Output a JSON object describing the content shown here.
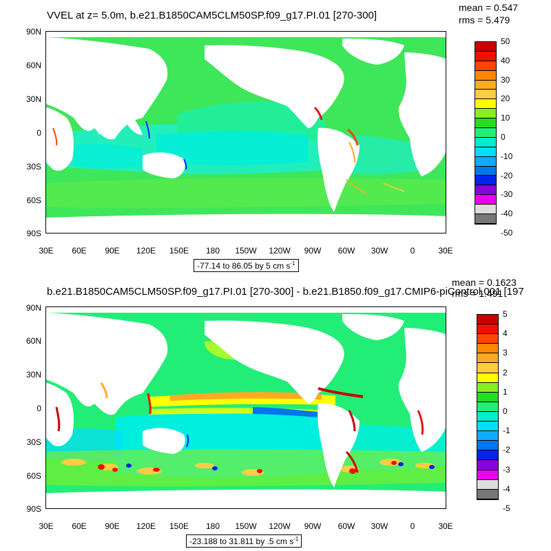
{
  "panels": [
    {
      "title": "VVEL at z=   5.0m, b.e21.B1850CAM5CLM50SP.f09_g17.PI.01 [270-300]",
      "mean": "mean = 0.547",
      "rms": "rms = 5.479",
      "range": "-77.14 to 86.05 by 5 cm s",
      "range_sup": "-1",
      "lat_labels": [
        "90N",
        "60N",
        "30N",
        "0",
        "30S",
        "60S",
        "90S"
      ],
      "lon_labels": [
        "30E",
        "60E",
        "90E",
        "120E",
        "150E",
        "180",
        "150W",
        "120W",
        "90W",
        "60W",
        "30W",
        "0",
        "30E"
      ],
      "cbar_labels": [
        "50",
        "40",
        "30",
        "20",
        "10",
        "0",
        "-10",
        "-20",
        "-30",
        "-40",
        "-50"
      ]
    },
    {
      "title": "b.e21.B1850CAM5CLM50SP.f09_g17.PI.01 [270-300] - b.e21.B1850.f09_g17.CMIP6-piControl.001 [197",
      "mean": "mean = 0.1623",
      "rms": "rms = 1.491",
      "range": "-23.188 to 31.811 by .5 cm s",
      "range_sup": "-1",
      "lat_labels": [
        "90N",
        "60N",
        "30N",
        "0",
        "30S",
        "60S",
        "90S"
      ],
      "lon_labels": [
        "30E",
        "60E",
        "90E",
        "120E",
        "150E",
        "180",
        "150W",
        "120W",
        "90W",
        "60W",
        "30W",
        "0",
        "30E"
      ],
      "cbar_labels": [
        "5",
        "4",
        "3",
        "2",
        "1",
        "0",
        "-1",
        "-2",
        "-3",
        "-4",
        "-5"
      ]
    }
  ],
  "colors": {
    "palette": [
      "#c80000",
      "#ee1100",
      "#ff4400",
      "#ff8800",
      "#ffaa22",
      "#ffcc44",
      "#ffff00",
      "#88ee22",
      "#22dd22",
      "#22ee77",
      "#00eecc",
      "#00ddff",
      "#11aaff",
      "#0077ee",
      "#0022ee",
      "#8800dd",
      "#ee00ee",
      "#dddddd",
      "#777777"
    ],
    "land": "#ffffff",
    "ocean_base_1": "#3ee65a",
    "ocean_base_2": "#2fe05a"
  }
}
